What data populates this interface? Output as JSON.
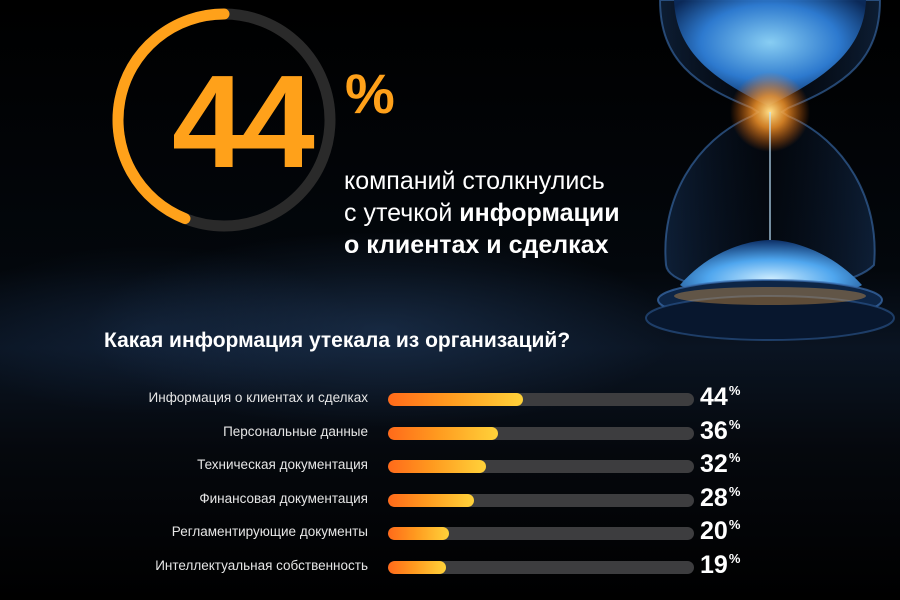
{
  "hero": {
    "value": "44",
    "percent_sign": "%",
    "ring_fraction": 0.44,
    "text_line1": "компаний столкнулись",
    "text_line2_prefix": "с утечкой ",
    "text_line2_bold": "информации",
    "text_line3_bold": "о клиентах и сделках"
  },
  "colors": {
    "accent": "#ffa11a",
    "ring_track": "#2a2a2a",
    "bar_track": "#3d3d3f",
    "bar_start": "#ff6a1a",
    "bar_end": "#ffd23a"
  },
  "decoration": {
    "image": "hourglass-icon"
  },
  "chart_data": {
    "type": "bar",
    "orientation": "horizontal",
    "title": "Какая информация утекала из организаций?",
    "xlim": [
      0,
      100
    ],
    "unit": "%",
    "categories": [
      "Информация о клиентах и сделках",
      "Персональные данные",
      "Техническая документация",
      "Финансовая документация",
      "Регламентирующие документы",
      "Интеллектуальная собственность"
    ],
    "values": [
      44,
      36,
      32,
      28,
      20,
      19
    ],
    "value_labels": [
      "44",
      "36",
      "32",
      "28",
      "20",
      "19"
    ]
  }
}
